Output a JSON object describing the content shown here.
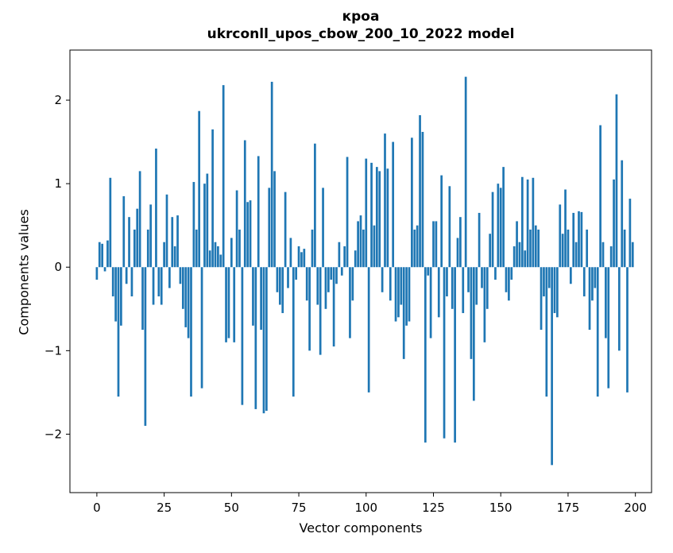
{
  "chart_data": {
    "type": "bar",
    "title_line1": "кроа",
    "title_line2": "ukrconll_upos_cbow_200_10_2022 model",
    "xlabel": "Vector components",
    "ylabel": "Components values",
    "xlim": [
      -10,
      206
    ],
    "ylim": [
      -2.7,
      2.6
    ],
    "x_ticks": [
      0,
      25,
      50,
      75,
      100,
      125,
      150,
      175,
      200
    ],
    "y_ticks": [
      -2,
      -1,
      0,
      1,
      2
    ],
    "bar_color": "#1f77b4",
    "bar_width": 0.8,
    "legend": "none",
    "grid": false,
    "values": [
      -0.15,
      0.3,
      0.28,
      -0.05,
      0.32,
      1.07,
      -0.35,
      -0.65,
      -1.55,
      -0.7,
      0.85,
      -0.2,
      0.6,
      -0.35,
      0.45,
      0.7,
      1.15,
      -0.75,
      -1.9,
      0.45,
      0.75,
      -0.45,
      1.42,
      -0.35,
      -0.45,
      0.3,
      0.87,
      -0.25,
      0.6,
      0.25,
      0.62,
      -0.2,
      -0.5,
      -0.72,
      -0.85,
      -1.55,
      1.02,
      0.45,
      1.87,
      -1.45,
      1.0,
      1.12,
      0.2,
      1.65,
      0.3,
      0.25,
      0.15,
      2.18,
      -0.9,
      -0.85,
      0.35,
      -0.9,
      0.92,
      0.45,
      -1.65,
      1.52,
      0.78,
      0.8,
      -0.7,
      -1.7,
      1.33,
      -0.75,
      -1.75,
      -1.72,
      0.95,
      2.22,
      1.15,
      -0.3,
      -0.45,
      -0.55,
      0.9,
      -0.25,
      0.35,
      -1.55,
      -0.15,
      0.25,
      0.18,
      0.22,
      -0.4,
      -1.0,
      0.45,
      1.48,
      -0.45,
      -1.05,
      0.95,
      -0.5,
      -0.3,
      -0.15,
      -0.95,
      -0.2,
      0.3,
      -0.1,
      0.25,
      1.32,
      -0.85,
      -0.4,
      0.2,
      0.55,
      0.62,
      0.45,
      1.3,
      -1.5,
      1.25,
      0.5,
      1.2,
      1.15,
      -0.3,
      1.6,
      1.18,
      -0.4,
      1.5,
      -0.65,
      -0.6,
      -0.45,
      -1.1,
      -0.7,
      -0.65,
      1.55,
      0.45,
      0.5,
      1.82,
      1.62,
      -2.1,
      -0.1,
      -0.85,
      0.55,
      0.55,
      -0.6,
      1.1,
      -2.05,
      -0.35,
      0.97,
      -0.5,
      -2.1,
      0.35,
      0.6,
      -0.55,
      2.28,
      -0.3,
      -1.1,
      -1.6,
      -0.45,
      0.65,
      -0.25,
      -0.9,
      -0.5,
      0.4,
      0.9,
      -0.15,
      1.0,
      0.95,
      1.2,
      -0.3,
      -0.4,
      -0.15,
      0.25,
      0.55,
      0.3,
      1.08,
      0.2,
      1.05,
      0.45,
      1.07,
      0.5,
      0.45,
      -0.75,
      -0.35,
      -1.55,
      -0.25,
      -2.37,
      -0.55,
      -0.6,
      0.75,
      0.4,
      0.93,
      0.45,
      -0.2,
      0.65,
      0.3,
      0.67,
      0.66,
      -0.35,
      0.45,
      -0.75,
      -0.4,
      -0.25,
      -1.55,
      1.7,
      0.3,
      -0.85,
      -1.45,
      0.25,
      1.05,
      2.07,
      -1.0,
      1.28,
      0.45,
      -1.5,
      0.82,
      0.3
    ]
  }
}
